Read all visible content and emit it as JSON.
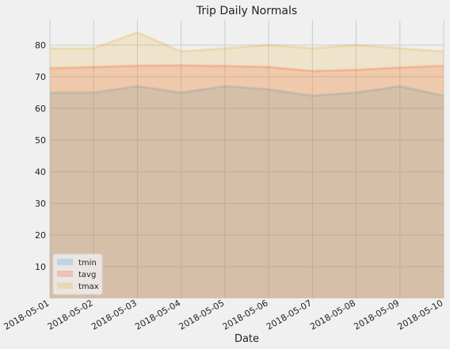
{
  "chart_data": {
    "type": "area",
    "title": "Trip Daily Normals",
    "xlabel": "Date",
    "ylabel": "",
    "x": [
      "2018-05-01",
      "2018-05-02",
      "2018-05-03",
      "2018-05-04",
      "2018-05-05",
      "2018-05-06",
      "2018-05-07",
      "2018-05-08",
      "2018-05-09",
      "2018-05-10"
    ],
    "ylim": [
      0,
      88
    ],
    "yticks": [
      10,
      20,
      30,
      40,
      50,
      60,
      70,
      80
    ],
    "grid": true,
    "stacked": false,
    "legend_position": "lower-left",
    "series": [
      {
        "name": "tmin",
        "color": "#30a2da",
        "values": [
          65,
          65,
          67,
          65,
          67,
          66,
          64,
          65,
          67,
          64
        ]
      },
      {
        "name": "tavg",
        "color": "#fc4f30",
        "values": [
          72.7,
          73.1,
          73.5,
          73.6,
          73.4,
          73.1,
          71.8,
          72.2,
          72.9,
          73.5
        ]
      },
      {
        "name": "tmax",
        "color": "#e5ae38",
        "values": [
          79,
          79,
          84,
          78,
          79,
          80,
          79,
          80,
          79,
          78
        ]
      }
    ]
  }
}
